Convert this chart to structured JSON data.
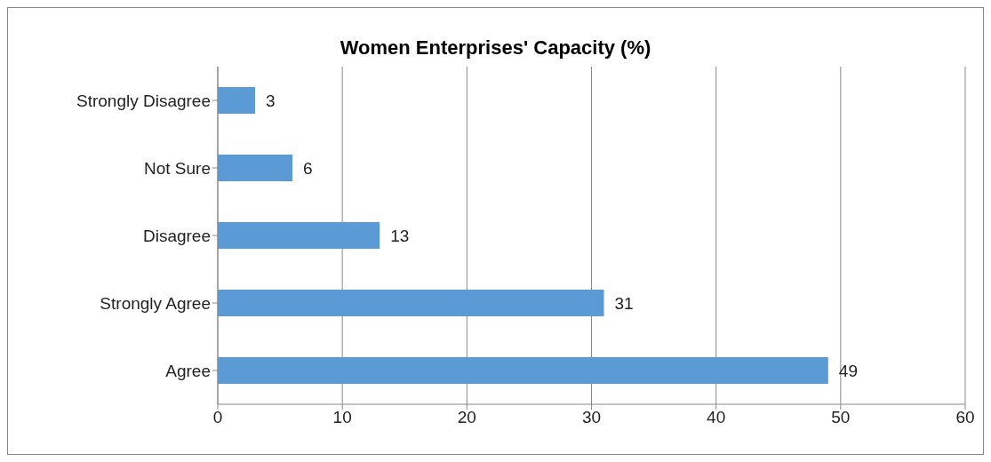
{
  "chart_data": {
    "type": "bar",
    "orientation": "horizontal",
    "title": "Women Enterprises' Capacity (%)",
    "categories": [
      "Strongly Disagree",
      "Not Sure",
      "Disagree",
      "Strongly Agree",
      "Agree"
    ],
    "values": [
      3,
      6,
      13,
      31,
      49
    ],
    "color": "#5b9bd5",
    "xlim": [
      0,
      60
    ],
    "xticks": [
      0,
      10,
      20,
      30,
      40,
      50,
      60
    ],
    "grid": "x",
    "data_labels": true,
    "legend": false
  }
}
